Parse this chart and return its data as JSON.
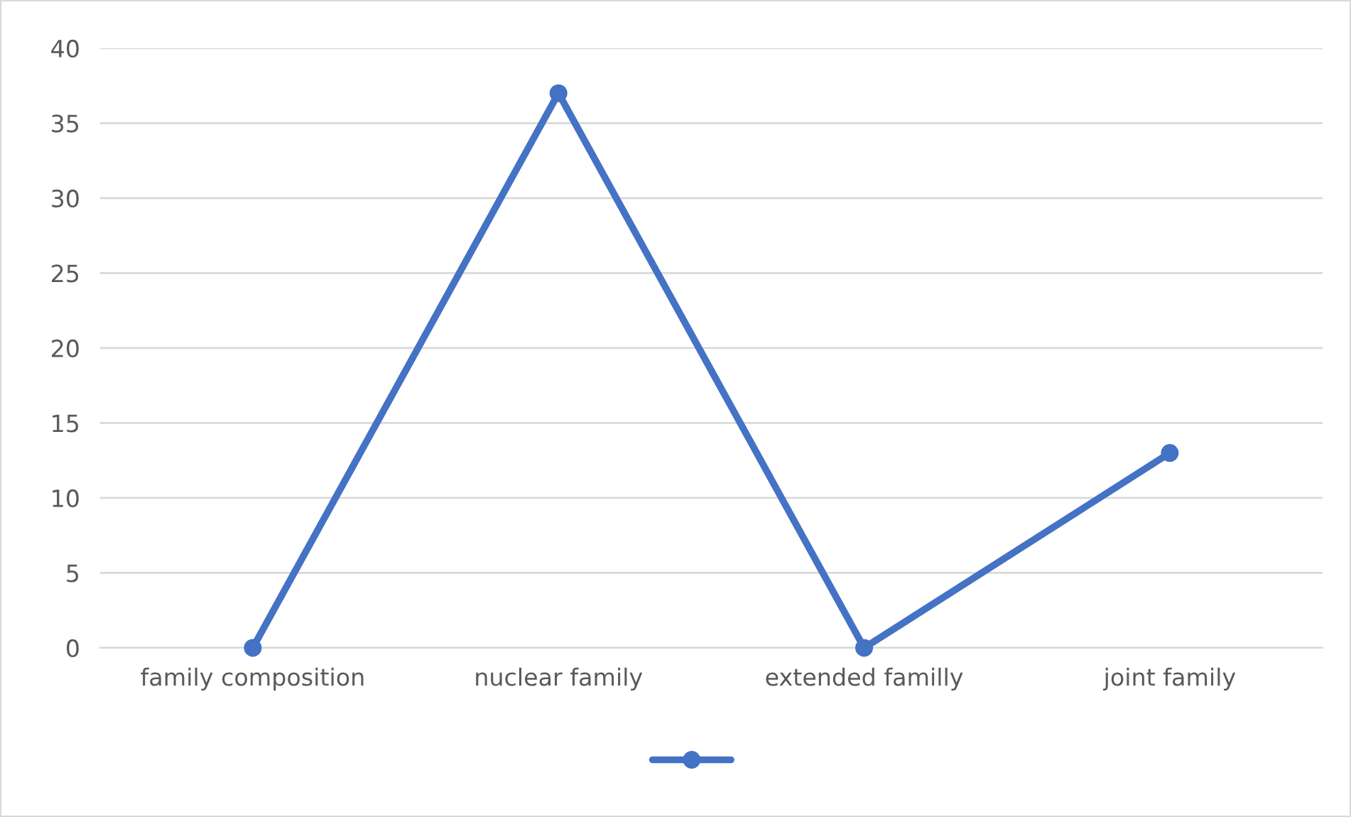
{
  "chart_data": {
    "type": "line",
    "categories": [
      "family composition",
      "nuclear family",
      "extended familly",
      "joint family"
    ],
    "series": [
      {
        "color": "#4472c4",
        "values": [
          0,
          37,
          0,
          13
        ]
      }
    ],
    "ylim": [
      0,
      40
    ],
    "yticks": [
      0,
      5,
      10,
      15,
      20,
      25,
      30,
      35,
      40
    ],
    "grid": "y",
    "marker": "circle",
    "line_style": "solid"
  }
}
